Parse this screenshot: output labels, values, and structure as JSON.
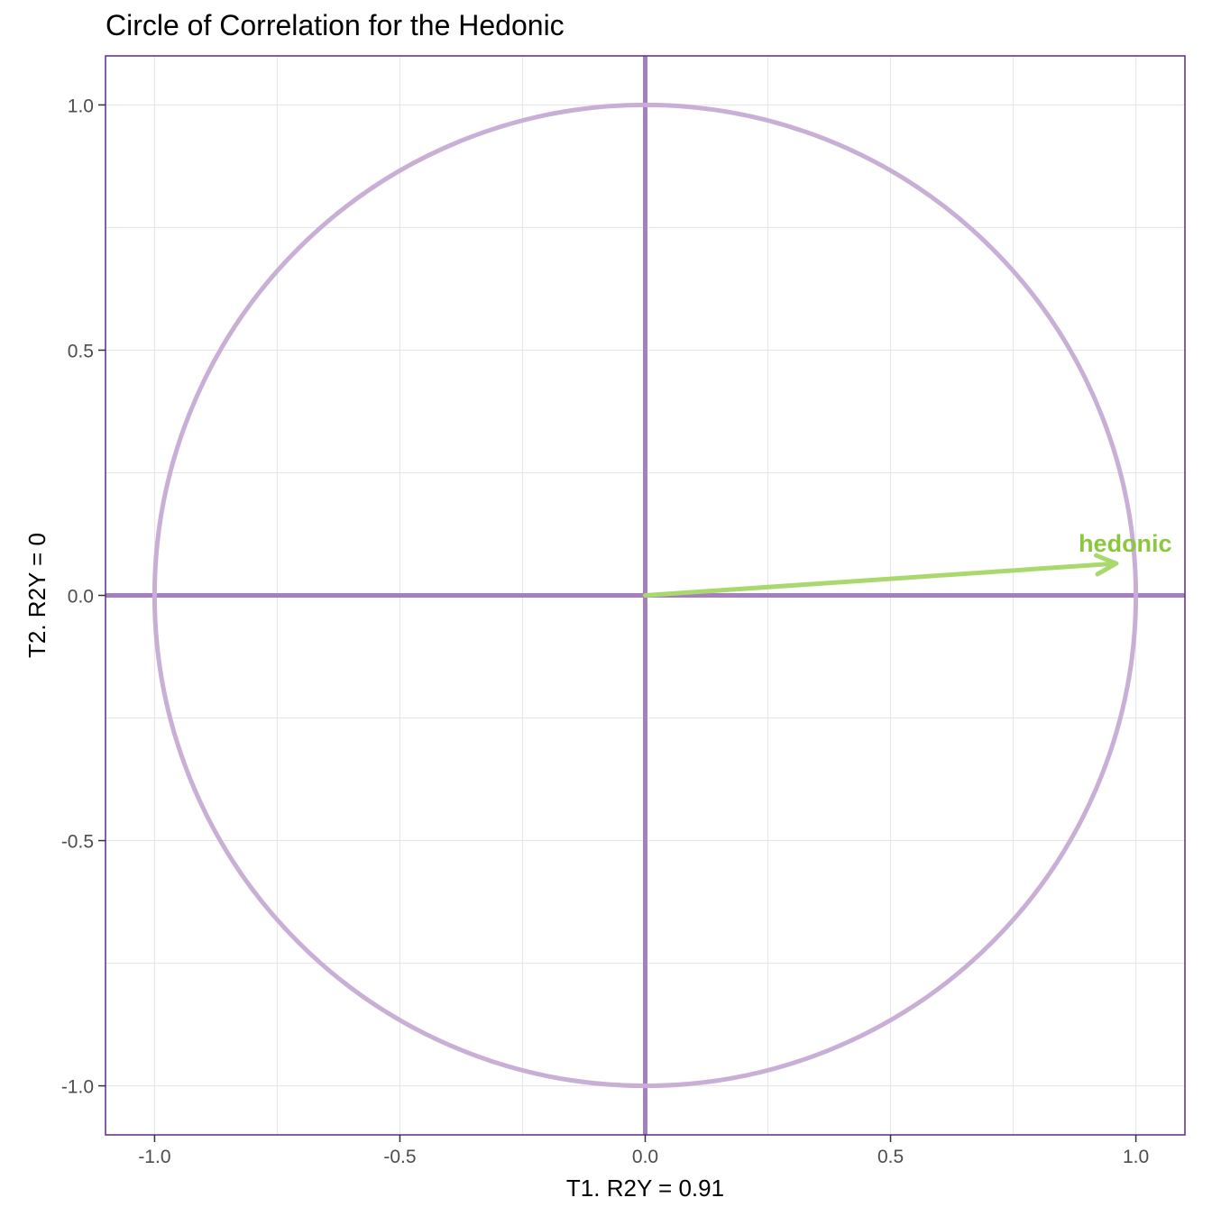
{
  "chart_data": {
    "type": "scatter",
    "title": "Circle of Correlation for the Hedonic",
    "xlabel": "T1. R2Y = 0.91",
    "ylabel": "T2. R2Y = 0",
    "xlim": [
      -1.1,
      1.1
    ],
    "ylim": [
      -1.1,
      1.1
    ],
    "x_ticks": [
      -1.0,
      -0.5,
      0.0,
      0.5,
      1.0
    ],
    "x_tick_labels": [
      "-1.0",
      "-0.5",
      "0.0",
      "0.5",
      "1.0"
    ],
    "y_ticks": [
      -1.0,
      -0.5,
      0.0,
      0.5,
      1.0
    ],
    "y_tick_labels": [
      "-1.0",
      "-0.5",
      "0.0",
      "0.5",
      "1.0"
    ],
    "grid": true,
    "circle_radius": 1.0,
    "reference_lines": {
      "x": 0,
      "y": 0
    },
    "arrows": [
      {
        "label": "hedonic",
        "x": 0.96,
        "y": 0.065
      }
    ],
    "colors": {
      "circle": "#c9aed6",
      "axes_lines": "#a67fbe",
      "panel_border": "#5b2c83",
      "arrow": "#a9d86e",
      "arrow_label": "#8cc63f",
      "grid": "#e5e5e5",
      "tick_text": "#4d4d4d",
      "title_text": "#000000"
    }
  }
}
